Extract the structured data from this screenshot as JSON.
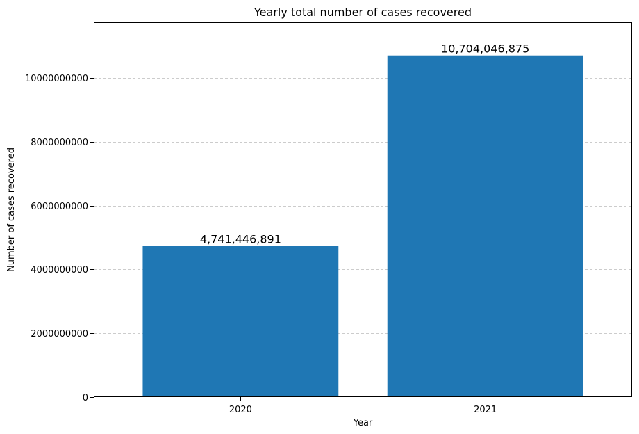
{
  "chart_data": {
    "type": "bar",
    "title": "Yearly total number of cases recovered",
    "xlabel": "Year",
    "ylabel": "Number of cases recovered",
    "categories": [
      "2020",
      "2021"
    ],
    "values": [
      4741446891,
      10704046875
    ],
    "data_labels": [
      "4,741,446,891",
      "10,704,046,875"
    ],
    "ylim": [
      0,
      11743980819
    ],
    "yticks": [
      0,
      2000000000,
      4000000000,
      6000000000,
      8000000000,
      10000000000
    ],
    "ytick_labels": [
      "0",
      "2000000000",
      "4000000000",
      "6000000000",
      "8000000000",
      "10000000000"
    ],
    "grid": "y-dashed",
    "bar_color": "#1f77b4",
    "grid_color": "#cccccc"
  }
}
